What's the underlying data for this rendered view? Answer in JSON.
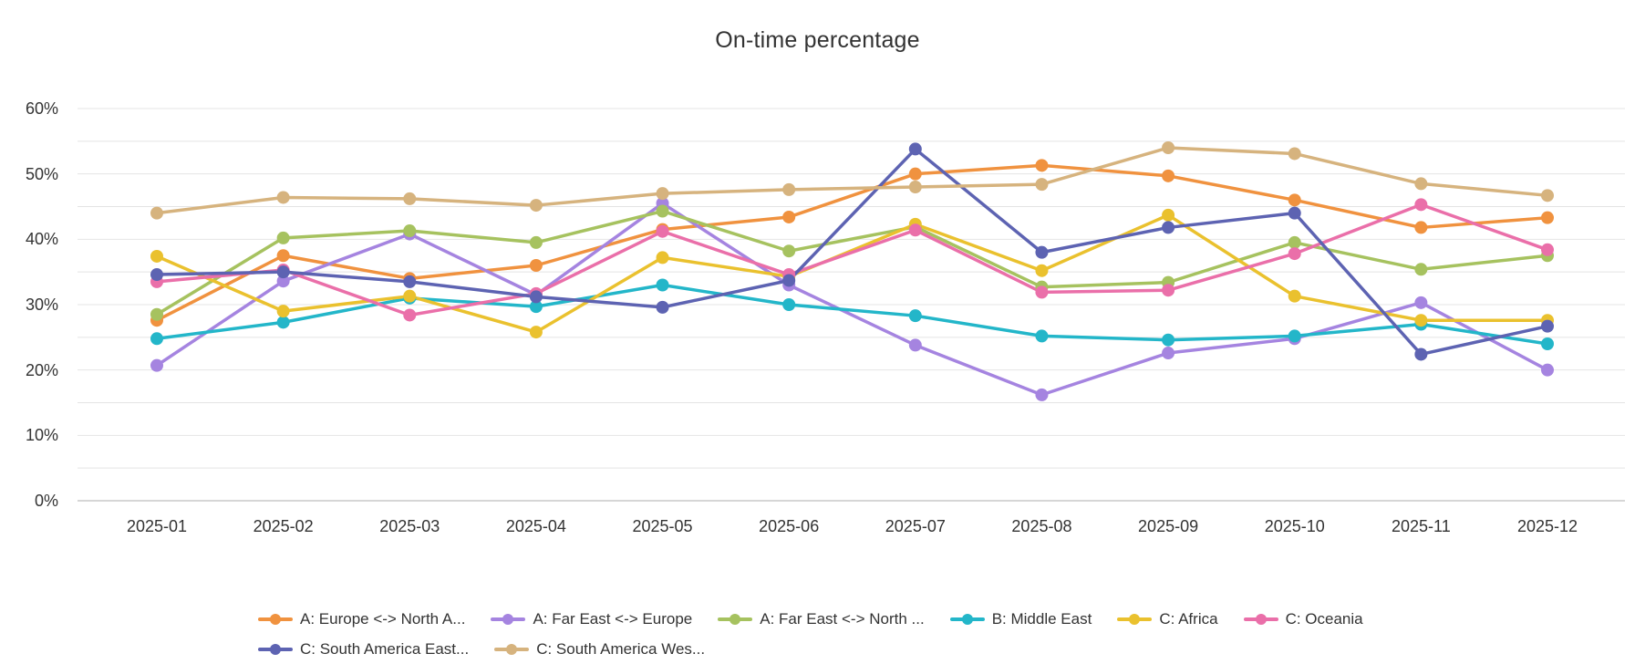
{
  "title": "On-time percentage",
  "chart_data": {
    "type": "line",
    "title": "On-time percentage",
    "categories": [
      "2025-01",
      "2025-02",
      "2025-03",
      "2025-04",
      "2025-05",
      "2025-06",
      "2025-07",
      "2025-08",
      "2025-09",
      "2025-10",
      "2025-11",
      "2025-12"
    ],
    "series": [
      {
        "name": "A: Europe <-> North A...",
        "color": "#F0923F",
        "values": [
          27.6,
          37.5,
          34.0,
          36.0,
          41.5,
          43.4,
          50.0,
          51.3,
          49.7,
          46.0,
          41.8,
          43.3
        ]
      },
      {
        "name": "A: Far East <-> Europe",
        "color": "#A584E0",
        "values": [
          20.7,
          33.6,
          40.8,
          31.5,
          45.5,
          33.0,
          23.8,
          16.2,
          22.6,
          24.8,
          30.3,
          20.0
        ]
      },
      {
        "name": "A: Far East <-> North ...",
        "color": "#A6C25F",
        "values": [
          28.5,
          40.2,
          41.3,
          39.5,
          44.3,
          38.2,
          41.9,
          32.7,
          33.4,
          39.5,
          35.4,
          37.5
        ]
      },
      {
        "name": "B: Middle East",
        "color": "#23B6C9",
        "values": [
          24.8,
          27.3,
          31.0,
          29.7,
          33.0,
          30.0,
          28.3,
          25.2,
          24.6,
          25.2,
          27.0,
          24.0
        ]
      },
      {
        "name": "C: Africa",
        "color": "#EAC12E",
        "values": [
          37.4,
          29.0,
          31.3,
          25.8,
          37.2,
          34.3,
          42.3,
          35.2,
          43.7,
          31.3,
          27.6,
          27.6
        ]
      },
      {
        "name": "C: Oceania",
        "color": "#EA6FA9",
        "values": [
          33.5,
          35.3,
          28.4,
          31.7,
          41.2,
          34.6,
          41.4,
          31.9,
          32.2,
          37.8,
          45.3,
          38.4
        ]
      },
      {
        "name": "C: South America East...",
        "color": "#5D63B2",
        "values": [
          34.6,
          35.0,
          33.5,
          31.2,
          29.6,
          33.7,
          53.8,
          38.0,
          41.8,
          44.0,
          22.4,
          26.7
        ]
      },
      {
        "name": "C: South America Wes...",
        "color": "#D6B37E",
        "values": [
          44.0,
          46.4,
          46.2,
          45.2,
          47.0,
          47.6,
          48.0,
          48.4,
          54.0,
          53.1,
          48.5,
          46.7
        ]
      }
    ],
    "xlabel": "",
    "ylabel": "",
    "y_axis": {
      "min": 0,
      "max": 60,
      "label_step": 10,
      "grid_step": 5,
      "unit": "%"
    },
    "grid": true,
    "legend_position": "bottom"
  },
  "colors": {
    "background": "#FFFFFF",
    "text": "#333333",
    "gridline": "#E4E4E4",
    "axisline": "#C9C9C9"
  }
}
